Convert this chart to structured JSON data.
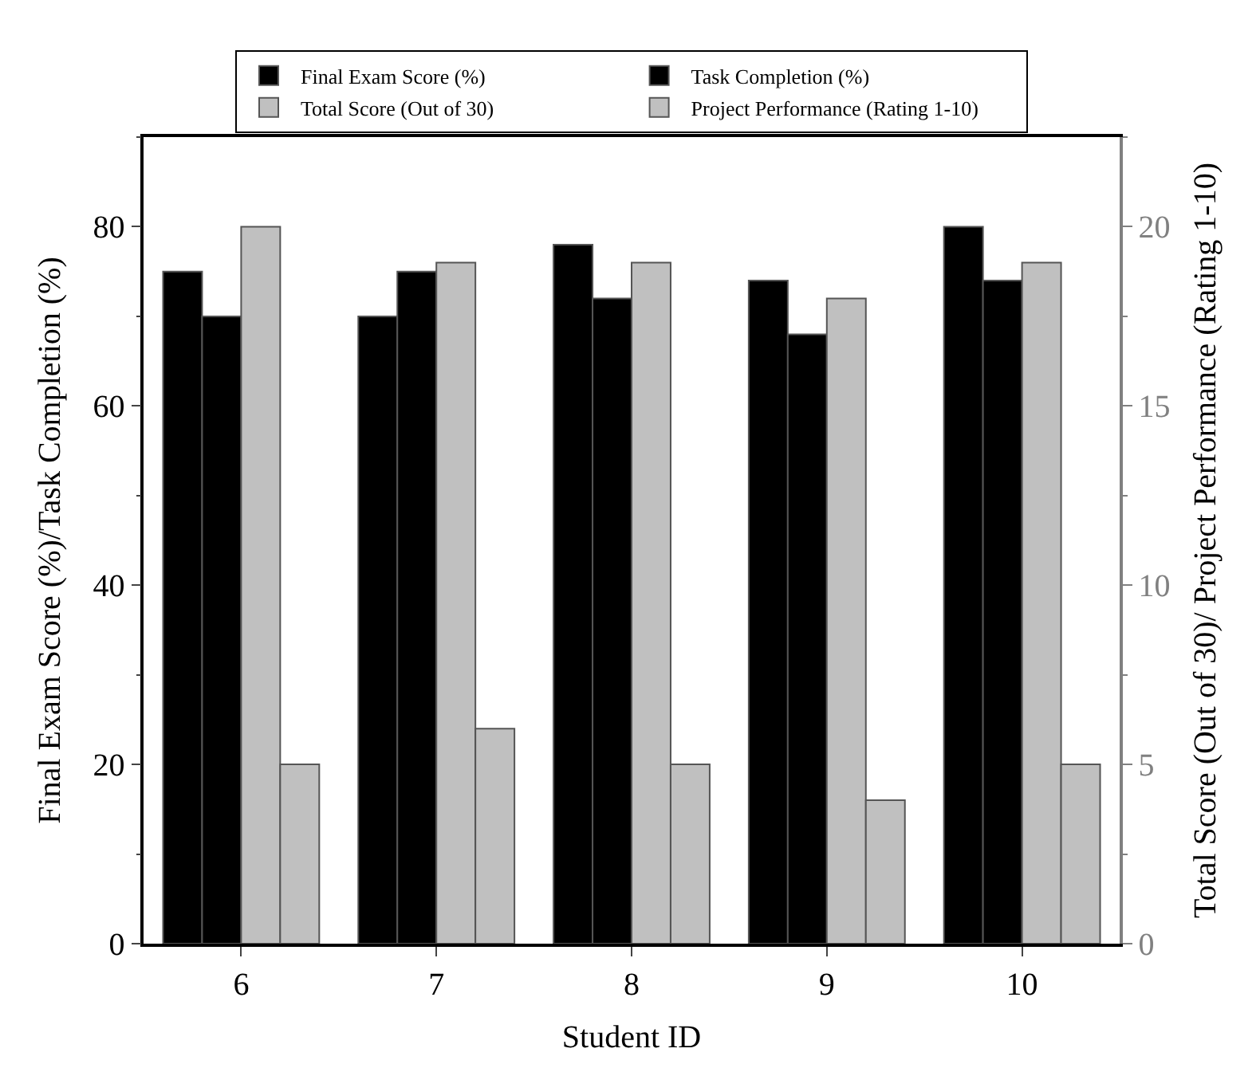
{
  "chart_data": {
    "type": "bar",
    "categories": [
      "6",
      "7",
      "8",
      "9",
      "10"
    ],
    "xlabel": "Student ID",
    "ylabel": "Final Exam Score (%)/Task Completion (%)",
    "y2label": "Total Score (Out of 30)/ Project Performance (Rating 1-10)",
    "ylim": [
      0,
      90
    ],
    "yticks": [
      0,
      20,
      40,
      60,
      80
    ],
    "y2lim": [
      0,
      22.5
    ],
    "y2ticks": [
      0,
      5,
      10,
      15,
      20
    ],
    "legend": "top",
    "grid": false,
    "series": [
      {
        "name": "Final Exam Score (%)",
        "color": "#000000",
        "values": [
          75,
          70,
          78,
          74,
          80
        ]
      },
      {
        "name": "Task Completion (%)",
        "color": "#000000",
        "values": [
          70,
          75,
          72,
          68,
          74
        ]
      },
      {
        "name": "Total Score (Out of 30)",
        "color": "#c0c0c0",
        "axis": "y2",
        "values": [
          20,
          19,
          19,
          18,
          19
        ]
      },
      {
        "name": "Project Performance (Rating 1-10)",
        "color": "#c0c0c0",
        "axis": "y2",
        "values": [
          5,
          6,
          5,
          4,
          5
        ]
      }
    ]
  }
}
